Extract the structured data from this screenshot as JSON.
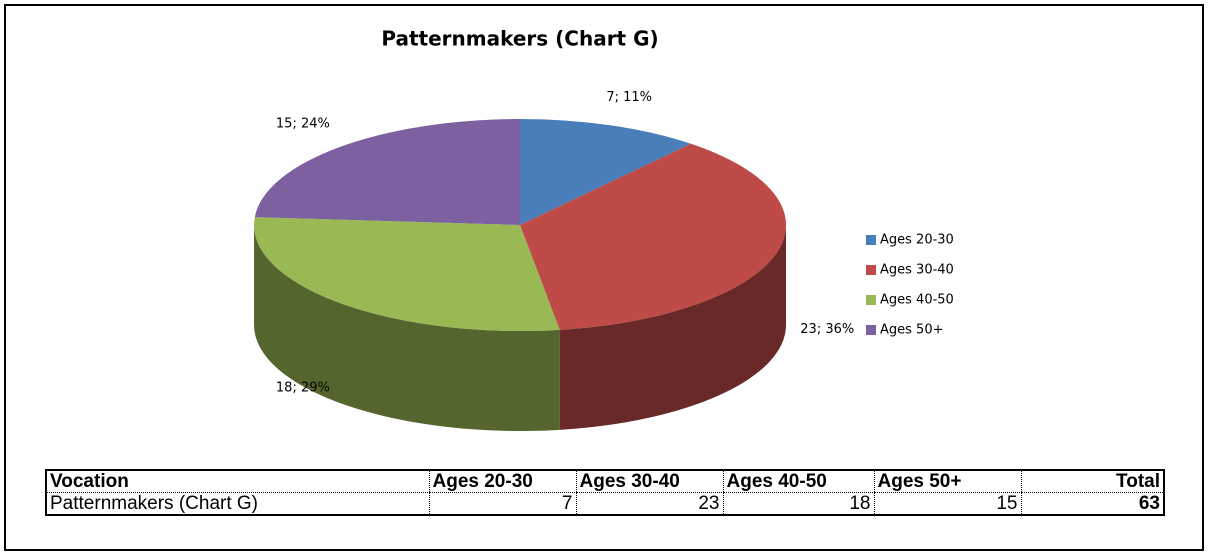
{
  "chart_data": {
    "type": "pie",
    "title": "Patternmakers (Chart G)",
    "categories": [
      "Ages 20-30",
      "Ages 30-40",
      "Ages 40-50",
      "Ages 50+"
    ],
    "values": [
      7,
      23,
      18,
      15
    ],
    "value_labels": [
      "7; 11%",
      "23; 36%",
      "18; 29%",
      "15; 24%"
    ],
    "colors": [
      "#4a7ebb",
      "#be4b48",
      "#98b954",
      "#7d60a0"
    ],
    "legend": "right"
  },
  "table": {
    "header": [
      "Vocation",
      "Ages 20-30",
      "Ages 30-40",
      "Ages 40-50",
      "Ages 50+",
      "Total"
    ],
    "rows": [
      [
        "Patternmakers (Chart G)",
        7,
        23,
        18,
        15,
        63
      ]
    ]
  }
}
